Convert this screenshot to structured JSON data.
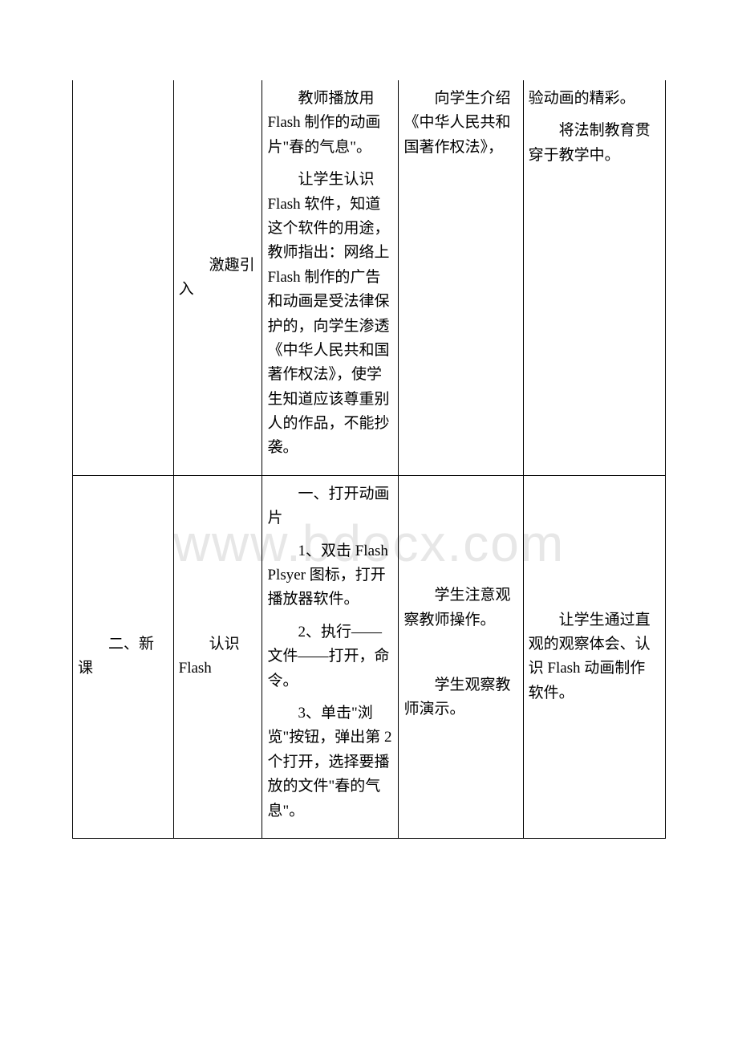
{
  "watermark": "www.bdocx.com",
  "table": {
    "rows": [
      {
        "c1": "",
        "c2_indent": "激趣引入",
        "c3": [
          {
            "indent": true,
            "text": "教师播放用 Flash 制作的动画片\"春的气息\"。"
          },
          {
            "indent": true,
            "text": "让学生认识 Flash 软件，知道这个软件的用途，教师指出：网络上 Flash 制作的广告和动画是受法律保护的，向学生渗透《中华人民共和国著作权法》，使学生知道应该尊重别人的作品，不能抄袭。"
          }
        ],
        "c4": [
          {
            "indent": true,
            "text": "向学生介绍《中华人民共和国著作权法》，"
          }
        ],
        "c5": [
          {
            "indent": false,
            "text": "验动画的精彩。"
          },
          {
            "indent": true,
            "text": "将法制教育贯穿于教学中。"
          }
        ]
      },
      {
        "c1_indent": "二、新课",
        "c2_indent": "认识Flash",
        "c3": [
          {
            "indent": true,
            "text": "一、打开动画片"
          },
          {
            "indent": true,
            "text": "1、双击 Flash Plsyer 图标，打开播放器软件。"
          },
          {
            "indent": true,
            "text": "2、执行——文件——打开，命令。"
          },
          {
            "indent": true,
            "text": "3、单击\"浏览\"按钮，弹出第 2 个打开，选择要播放的文件\"春的气息\"。"
          }
        ],
        "c4": [
          {
            "indent": true,
            "text": "学生注意观察教师操作。"
          },
          {
            "indent": true,
            "text": "学生观察教师演示。"
          }
        ],
        "c5": [
          {
            "indent": true,
            "text": "让学生通过直观的观察体会、认识 Flash 动画制作软件。"
          }
        ]
      }
    ]
  }
}
